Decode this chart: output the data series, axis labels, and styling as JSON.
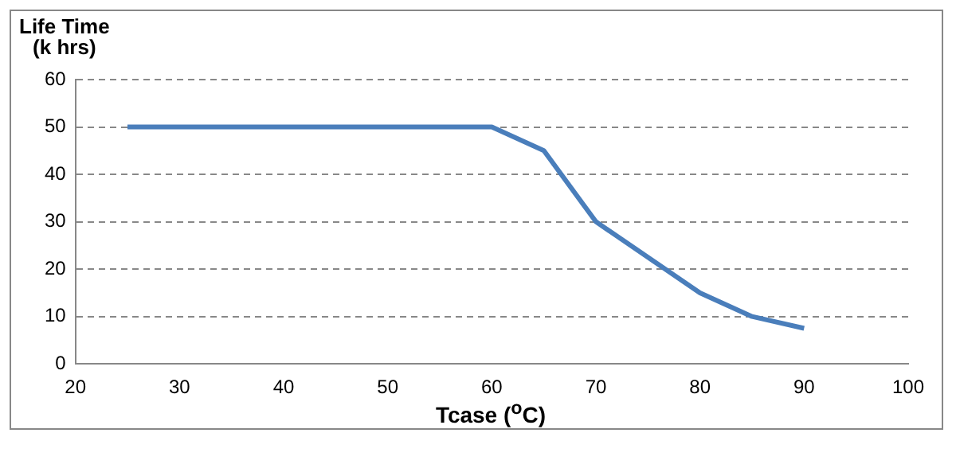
{
  "chart_data": {
    "type": "line",
    "xlabel": "Tcase ($^{o}$C)",
    "ylabel": "Life Time\n(k hrs)",
    "x": [
      25,
      60,
      65,
      70,
      80,
      85,
      90
    ],
    "series": [
      {
        "color": "#4a7ebb",
        "values": [
          50,
          50,
          45,
          30,
          15,
          10,
          7.5
        ]
      }
    ],
    "xlim": [
      20,
      100
    ],
    "xticks": [
      20,
      30,
      40,
      50,
      60,
      70,
      80,
      90,
      100
    ],
    "ylim": [
      0,
      60
    ],
    "yticks": [
      0,
      10,
      20,
      30,
      40,
      50,
      60
    ],
    "grid": "y",
    "legend": false,
    "marker": "none",
    "line_style": "solid"
  }
}
